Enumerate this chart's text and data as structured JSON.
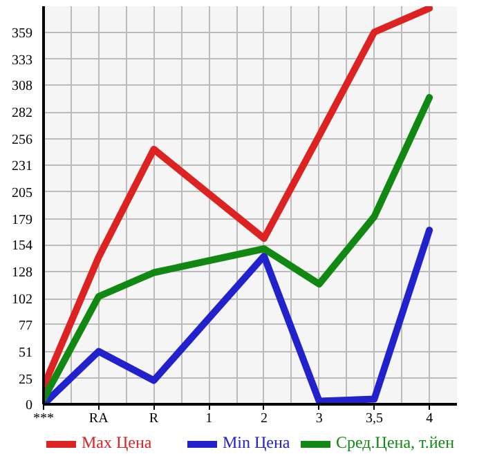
{
  "chart_data": {
    "type": "line",
    "categories": [
      "***",
      "RA",
      "R",
      "1",
      "2",
      "3",
      "3,5",
      "4"
    ],
    "series": [
      {
        "name": "Max Цена",
        "color": "#dd2222",
        "values": [
          17,
          142,
          246,
          null,
          160,
          259,
          359,
          382
        ]
      },
      {
        "name": "Min Цена",
        "color": "#2222cc",
        "values": [
          0,
          51,
          23,
          null,
          143,
          3,
          5,
          168
        ]
      },
      {
        "name": "Сред.Цена, т.йен",
        "color": "#118811",
        "values": [
          5,
          104,
          127,
          null,
          150,
          116,
          181,
          296
        ]
      }
    ],
    "ylim": [
      0,
      384
    ],
    "yticks": [
      0,
      25,
      51,
      77,
      102,
      128,
      154,
      179,
      205,
      231,
      256,
      282,
      308,
      333,
      359
    ],
    "grid": true,
    "legend": "bottom",
    "marker": "none",
    "line_style": "solid"
  }
}
